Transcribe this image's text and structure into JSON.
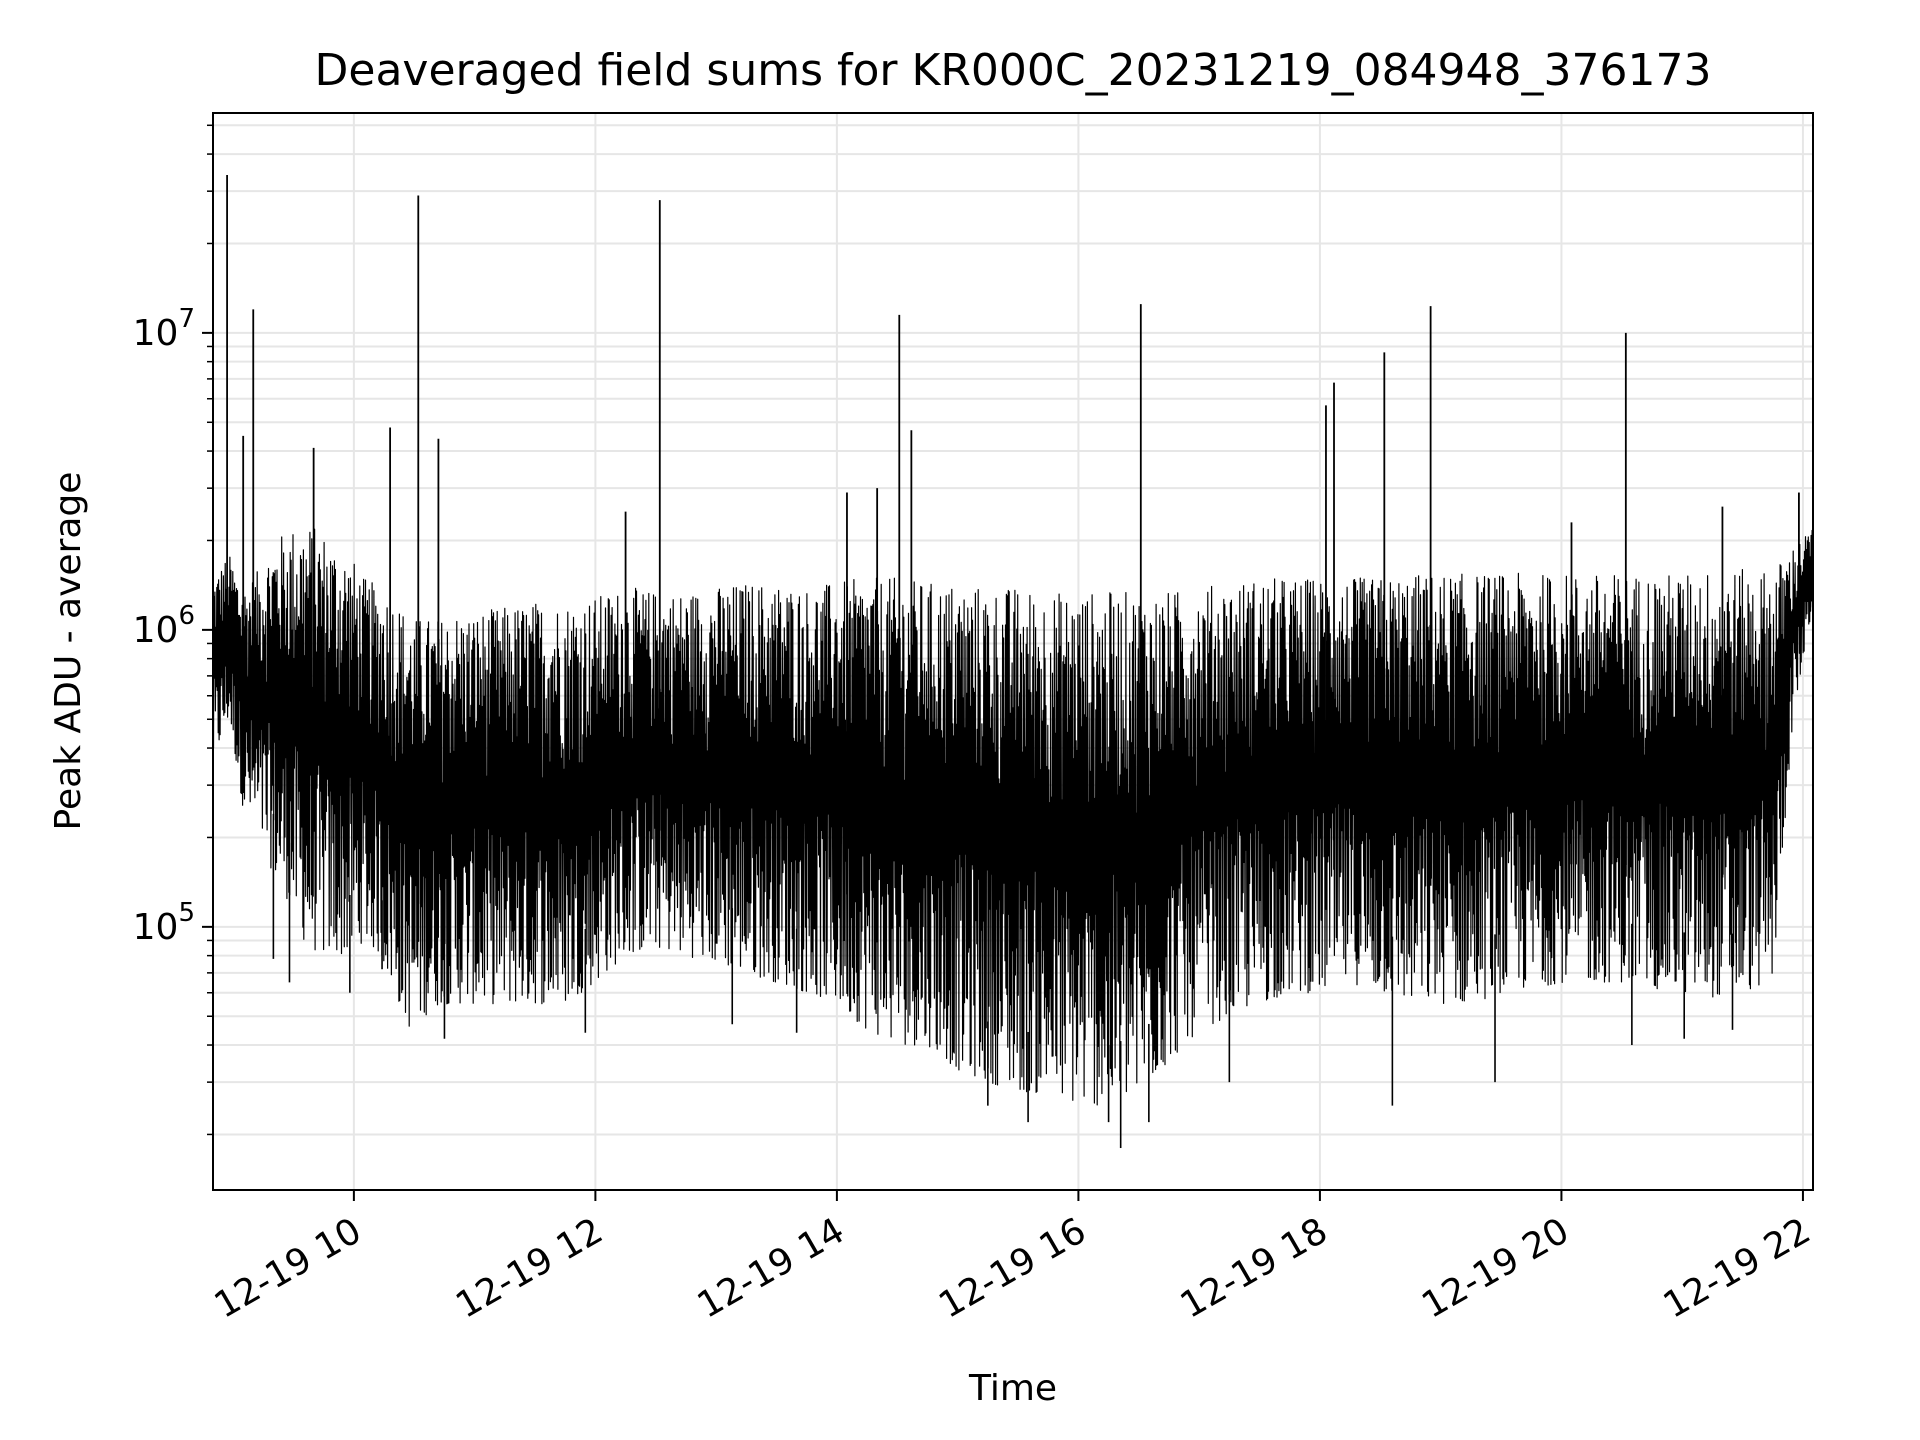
{
  "chart_data": {
    "type": "line",
    "title": "Deaveraged field sums for KR000C_20231219_084948_376173",
    "xlabel": "Time",
    "ylabel": "Peak ADU - average",
    "yscale": "log",
    "grid": true,
    "legend": "none",
    "line_color": "#000000",
    "grid_color": "#e6e6e6",
    "x_range": [
      "12-19 08:50",
      "12-19 22:05"
    ],
    "y_range": [
      13000,
      55000000
    ],
    "x_ticks": [
      {
        "value": "12-19 10:00",
        "label": "12-19 10"
      },
      {
        "value": "12-19 12:00",
        "label": "12-19 12"
      },
      {
        "value": "12-19 14:00",
        "label": "12-19 14"
      },
      {
        "value": "12-19 16:00",
        "label": "12-19 16"
      },
      {
        "value": "12-19 18:00",
        "label": "12-19 18"
      },
      {
        "value": "12-19 20:00",
        "label": "12-19 20"
      },
      {
        "value": "12-19 22:00",
        "label": "12-19 22"
      }
    ],
    "y_ticks": [
      {
        "value": 100000,
        "base": "10",
        "exp": "5"
      },
      {
        "value": 1000000,
        "base": "10",
        "exp": "6"
      },
      {
        "value": 10000000,
        "base": "10",
        "exp": "7"
      }
    ],
    "series": [
      {
        "x": [
          "12-19 08:50",
          "12-19 08:58",
          "12-19 09:05",
          "12-19 09:13",
          "12-19 09:20",
          "12-19 09:28",
          "12-19 09:35",
          "12-19 09:43",
          "12-19 09:50",
          "12-19 09:58",
          "12-19 10:05",
          "12-19 10:13",
          "12-19 10:20",
          "12-19 10:28",
          "12-19 10:35",
          "12-19 10:43",
          "12-19 10:50",
          "12-19 11:00",
          "12-19 11:15",
          "12-19 11:30",
          "12-19 11:45",
          "12-19 12:00",
          "12-19 12:15",
          "12-19 12:30",
          "12-19 12:45",
          "12-19 13:00",
          "12-19 13:15",
          "12-19 13:30",
          "12-19 13:45",
          "12-19 14:00",
          "12-19 14:15",
          "12-19 14:30",
          "12-19 14:45",
          "12-19 15:00",
          "12-19 15:15",
          "12-19 15:30",
          "12-19 15:45",
          "12-19 16:00",
          "12-19 16:15",
          "12-19 16:30",
          "12-19 16:45",
          "12-19 17:00",
          "12-19 17:15",
          "12-19 17:30",
          "12-19 17:45",
          "12-19 18:00",
          "12-19 18:15",
          "12-19 18:30",
          "12-19 18:45",
          "12-19 19:00",
          "12-19 19:15",
          "12-19 19:30",
          "12-19 19:45",
          "12-19 20:00",
          "12-19 20:15",
          "12-19 20:30",
          "12-19 20:45",
          "12-19 21:00",
          "12-19 21:15",
          "12-19 21:30",
          "12-19 21:45",
          "12-19 21:55",
          "12-19 22:05"
        ],
        "lo": [
          350000,
          500000,
          250000,
          200000,
          150000,
          120000,
          90000,
          80000,
          80000,
          80000,
          90000,
          80000,
          60000,
          45000,
          50000,
          55000,
          55000,
          55000,
          55000,
          55000,
          55000,
          65000,
          80000,
          85000,
          80000,
          75000,
          70000,
          65000,
          60000,
          55000,
          45000,
          40000,
          40000,
          33000,
          30000,
          28000,
          27000,
          25000,
          25000,
          27000,
          35000,
          45000,
          50000,
          55000,
          60000,
          60000,
          65000,
          60000,
          55000,
          55000,
          55000,
          60000,
          62000,
          65000,
          65000,
          65000,
          62000,
          60000,
          58000,
          60000,
          65000,
          500000,
          1200000
        ],
        "hi": [
          1500000,
          1800000,
          1400000,
          1600000,
          2000000,
          2200000,
          2300000,
          2200000,
          2000000,
          1800000,
          1500000,
          1400000,
          1300000,
          1100000,
          1100000,
          1100000,
          1150000,
          1150000,
          1200000,
          1250000,
          1250000,
          1300000,
          1400000,
          1350000,
          1350000,
          1400000,
          1450000,
          1450000,
          1400000,
          1450000,
          1500000,
          1500000,
          1450000,
          1450000,
          1400000,
          1400000,
          1350000,
          1350000,
          1350000,
          1350000,
          1350000,
          1400000,
          1450000,
          1500000,
          1500000,
          1500000,
          1500000,
          1500000,
          1550000,
          1550000,
          1550000,
          1550000,
          1550000,
          1550000,
          1550000,
          1550000,
          1550000,
          1550000,
          1600000,
          1600000,
          1600000,
          1900000,
          2200000
        ]
      }
    ],
    "spikes": [
      {
        "x": "12-19 08:57",
        "y": 34000000
      },
      {
        "x": "12-19 09:10",
        "y": 12000000
      },
      {
        "x": "12-19 09:05",
        "y": 4500000
      },
      {
        "x": "12-19 09:40",
        "y": 4100000
      },
      {
        "x": "12-19 10:18",
        "y": 4800000
      },
      {
        "x": "12-19 10:32",
        "y": 29000000
      },
      {
        "x": "12-19 10:42",
        "y": 4400000
      },
      {
        "x": "12-19 12:15",
        "y": 2500000
      },
      {
        "x": "12-19 12:32",
        "y": 28000000
      },
      {
        "x": "12-19 14:05",
        "y": 2900000
      },
      {
        "x": "12-19 14:20",
        "y": 3000000
      },
      {
        "x": "12-19 14:31",
        "y": 11500000
      },
      {
        "x": "12-19 14:37",
        "y": 4700000
      },
      {
        "x": "12-19 16:31",
        "y": 12500000
      },
      {
        "x": "12-19 18:03",
        "y": 5700000
      },
      {
        "x": "12-19 18:07",
        "y": 6800000
      },
      {
        "x": "12-19 18:32",
        "y": 8600000
      },
      {
        "x": "12-19 18:55",
        "y": 12300000
      },
      {
        "x": "12-19 20:05",
        "y": 2300000
      },
      {
        "x": "12-19 20:32",
        "y": 10000000
      },
      {
        "x": "12-19 21:20",
        "y": 2600000
      },
      {
        "x": "12-19 21:58",
        "y": 2900000
      }
    ],
    "dips": [
      {
        "x": "12-19 09:20",
        "y": 78000
      },
      {
        "x": "12-19 09:28",
        "y": 65000
      },
      {
        "x": "12-19 09:58",
        "y": 60000
      },
      {
        "x": "12-19 10:14",
        "y": 72000
      },
      {
        "x": "12-19 10:45",
        "y": 42000
      },
      {
        "x": "12-19 11:55",
        "y": 44000
      },
      {
        "x": "12-19 13:08",
        "y": 47000
      },
      {
        "x": "12-19 13:40",
        "y": 44000
      },
      {
        "x": "12-19 15:15",
        "y": 25000
      },
      {
        "x": "12-19 15:35",
        "y": 22000
      },
      {
        "x": "12-19 16:15",
        "y": 22000
      },
      {
        "x": "12-19 16:21",
        "y": 18000
      },
      {
        "x": "12-19 16:35",
        "y": 22000
      },
      {
        "x": "12-19 17:15",
        "y": 30000
      },
      {
        "x": "12-19 18:36",
        "y": 25000
      },
      {
        "x": "12-19 19:27",
        "y": 30000
      },
      {
        "x": "12-19 20:35",
        "y": 40000
      },
      {
        "x": "12-19 21:01",
        "y": 42000
      },
      {
        "x": "12-19 21:25",
        "y": 45000
      }
    ]
  }
}
